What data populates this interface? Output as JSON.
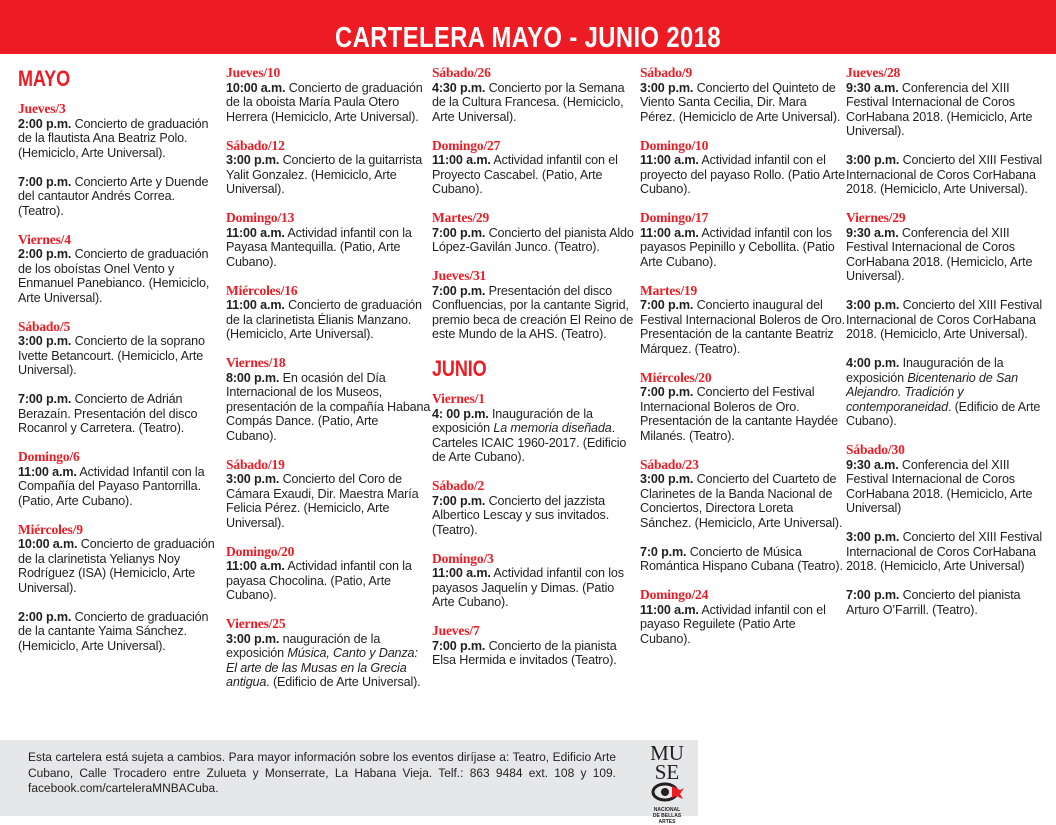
{
  "title": "CARTELERA  MAYO - JUNIO 2018",
  "colors": {
    "accent": "#ed1c24",
    "footer_bg": "#e6e7e8"
  },
  "columns": [
    [
      {
        "month": "MAYO"
      },
      {
        "day": "Jueves/3",
        "events": [
          {
            "time": "2:00 p.m.",
            "text": [
              {
                "t": " Concierto de graduación de la flautista Ana Beatriz Polo. (Hemiciclo, Arte Universal)."
              }
            ]
          },
          {
            "time": "7:00 p.m.",
            "text": [
              {
                "t": "  Concierto Arte y Duende del cantautor Andrés Correa. (Teatro)."
              }
            ]
          }
        ]
      },
      {
        "day": "Viernes/4",
        "events": [
          {
            "time": "2:00 p.m.",
            "text": [
              {
                "t": " Concierto de graduación de los oboístas Onel Vento y Enmanuel Panebianco. (Hemiciclo, Arte Universal)."
              }
            ]
          }
        ]
      },
      {
        "day": "Sábado/5",
        "events": [
          {
            "time": "3:00 p.m.",
            "text": [
              {
                "t": " Concierto de la soprano Ivette Betancourt. (Hemiciclo, Arte Universal)."
              }
            ]
          },
          {
            "time": "7:00 p.m.",
            "text": [
              {
                "t": " Concierto de Adrián Berazaín. Presentación del disco Rocanrol y Carretera. (Teatro)."
              }
            ]
          }
        ]
      },
      {
        "day": "Domingo/6",
        "events": [
          {
            "time": "11:00 a.m.",
            "text": [
              {
                "t": " Actividad Infantil con la Compañía del Payaso Pantorrilla. (Patio, Arte Cubano)."
              }
            ]
          }
        ]
      },
      {
        "day": "Miércoles/9",
        "events": [
          {
            "time": "10:00 a.m.",
            "text": [
              {
                "t": " Concierto de graduación de la clarinetista Yelianys Noy Rodríguez (ISA) (Hemiciclo, Arte Universal)."
              }
            ]
          },
          {
            "time": "2:00 p.m.",
            "text": [
              {
                "t": " Concierto de graduación de la cantante Yaima Sánchez. (Hemiciclo, Arte Universal)."
              }
            ]
          }
        ]
      }
    ],
    [
      {
        "day": "Jueves/10",
        "events": [
          {
            "time": "10:00 a.m.",
            "text": [
              {
                "t": " Concierto de graduación de la oboista María Paula Otero Herrera (Hemiciclo, Arte Universal)."
              }
            ]
          }
        ]
      },
      {
        "day": "Sábado/12",
        "events": [
          {
            "time": "3:00 p.m.",
            "text": [
              {
                "t": " Concierto de la guitarrista Yalit Gonzalez. (Hemiciclo, Arte Universal)."
              }
            ]
          }
        ]
      },
      {
        "day": "Domingo/13",
        "events": [
          {
            "time": "11:00 a.m.",
            "text": [
              {
                "t": " Actividad infantil con la Payasa Mantequilla. (Patio, Arte Cubano)."
              }
            ]
          }
        ]
      },
      {
        "day": "Miércoles/16",
        "events": [
          {
            "time": "11:00 a.m.",
            "text": [
              {
                "t": " Concierto de graduación de la clarinetista Élianis Manzano. (Hemiciclo, Arte Universal)."
              }
            ]
          }
        ]
      },
      {
        "day": "Viernes/18",
        "events": [
          {
            "time": "8:00 p.m.",
            "text": [
              {
                "t": " En ocasión del Día Internacional de los Museos, presentación de la compañía Habana Compás Dance. (Patio, Arte Cubano)."
              }
            ]
          }
        ]
      },
      {
        "day": "Sábado/19",
        "events": [
          {
            "time": "3:00 p.m.",
            "text": [
              {
                "t": " Concierto del Coro de Cámara Exaudi, Dir. Maestra María Felicia Pérez. (Hemiciclo, Arte Universal)."
              }
            ]
          }
        ]
      },
      {
        "day": "Domingo/20",
        "events": [
          {
            "time": "11:00 a.m.",
            "text": [
              {
                "t": " Actividad infantil con la payasa Chocolina. (Patio, Arte Cubano)."
              }
            ]
          }
        ]
      },
      {
        "day": "Viernes/25",
        "events": [
          {
            "time": "3:00 p.m.",
            "text": [
              {
                "t": " nauguración de la exposición "
              },
              {
                "t": "Música, Canto  y Danza: El  arte  de las Musas en la Grecia antigua",
                "i": true
              },
              {
                "t": ".   (Edificio de Arte Universal)."
              }
            ]
          }
        ]
      }
    ],
    [
      {
        "day": "Sábado/26",
        "events": [
          {
            "time": "4:30 p.m.",
            "text": [
              {
                "t": " Concierto por la Semana de la Cultura Francesa. (Hemiciclo, Arte Universal)."
              }
            ]
          }
        ]
      },
      {
        "day": "Domingo/27",
        "events": [
          {
            "time": "11:00 a.m.",
            "text": [
              {
                "t": " Actividad infantil con el Proyecto Cascabel. (Patio, Arte Cubano)."
              }
            ]
          }
        ]
      },
      {
        "day": "Martes/29",
        "events": [
          {
            "time": "7:00 p.m.",
            "text": [
              {
                "t": "  Concierto del pianista Aldo López-Gavilán Junco. (Teatro)."
              }
            ]
          }
        ]
      },
      {
        "day": "Jueves/31",
        "events": [
          {
            "time": "7:00 p.m.",
            "text": [
              {
                "t": " Presentación del disco Confluencias, por la cantante Sigrid, premio beca de creación El Reino de este Mundo de la AHS. (Teatro)."
              }
            ]
          }
        ]
      },
      {
        "month": "JUNIO"
      },
      {
        "day": "Viernes/1",
        "events": [
          {
            "time": "4: 00 p.m.",
            "text": [
              {
                "t": " Inauguración de la exposición "
              },
              {
                "t": "La memoria diseñada",
                "i": true
              },
              {
                "t": ". Carteles ICAIC 1960-2017. (Edificio de Arte Cubano)."
              }
            ]
          }
        ]
      },
      {
        "day": "Sábado/2",
        "events": [
          {
            "time": "7:00 p.m.",
            "text": [
              {
                "t": " Concierto del jazzista Albertico Lescay y sus invitados. (Teatro)."
              }
            ]
          }
        ]
      },
      {
        "day": "Domingo/3",
        "events": [
          {
            "time": "11:00 a.m.",
            "text": [
              {
                "t": " Actividad infantil con los payasos Jaquelín y Dimas. (Patio Arte Cubano)."
              }
            ]
          }
        ]
      },
      {
        "day": "Jueves/7",
        "events": [
          {
            "time": "7:00 p.m.",
            "text": [
              {
                "t": " Concierto de la pianista Elsa Hermida e invitados (Teatro)."
              }
            ]
          }
        ]
      }
    ],
    [
      {
        "day": "Sábado/9",
        "events": [
          {
            "time": "3:00 p.m.",
            "text": [
              {
                "t": " Concierto del Quinteto de Viento Santa Cecilia, Dir. Mara Pérez. (Hemiciclo de Arte Universal)."
              }
            ]
          }
        ]
      },
      {
        "day": "Domingo/10",
        "events": [
          {
            "time": "11:00 a.m.",
            "text": [
              {
                "t": " Actividad infantil con el proyecto del payaso Rollo. (Patio Arte Cubano)."
              }
            ]
          }
        ]
      },
      {
        "day": "Domingo/17",
        "events": [
          {
            "time": "11:00 a.m.",
            "text": [
              {
                "t": " Actividad infantil con los payasos Pepinillo y Cebollita. (Patio Arte Cubano)."
              }
            ]
          }
        ]
      },
      {
        "day": "Martes/19",
        "events": [
          {
            "time": "7:00 p.m.",
            "text": [
              {
                "t": " Concierto inaugural del Festival Internacional Boleros de Oro. Presentación de la cantante Beatriz Márquez. (Teatro)."
              }
            ]
          }
        ]
      },
      {
        "day": "Miércoles/20",
        "events": [
          {
            "time": "7:00 p.m.",
            "text": [
              {
                "t": " Concierto del Festival Internacional Boleros de Oro. Presentación de la cantante Haydée Milanés. (Teatro)."
              }
            ]
          }
        ]
      },
      {
        "day": "Sábado/23",
        "events": [
          {
            "time": "3:00 p.m.",
            "text": [
              {
                "t": " Concierto del Cuarteto de Clarinetes de la Banda Nacional de Conciertos, Directora Loreta Sánchez. (Hemiciclo, Arte Universal)."
              }
            ]
          },
          {
            "time": "7:0 p.m.",
            "text": [
              {
                "t": " Concierto de Música Romántica Hispano Cubana (Teatro)."
              }
            ]
          }
        ]
      },
      {
        "day": "Domingo/24",
        "events": [
          {
            "time": "11:00 a.m.",
            "text": [
              {
                "t": " Actividad infantil con el payaso Reguilete (Patio Arte Cubano)."
              }
            ]
          }
        ]
      }
    ],
    [
      {
        "day": "Jueves/28",
        "events": [
          {
            "time": "9:30 a.m.",
            "text": [
              {
                "t": " Conferencia del XIII Festival Internacional de Coros CorHabana 2018. (Hemiciclo, Arte Universal)."
              }
            ]
          },
          {
            "time": "3:00 p.m.",
            "text": [
              {
                "t": " Concierto del XIII Festival Internacional de Coros CorHabana 2018. (Hemiciclo, Arte Universal)."
              }
            ]
          }
        ]
      },
      {
        "day": "Viernes/29",
        "events": [
          {
            "time": "9:30 a.m.",
            "text": [
              {
                "t": " Conferencia del XIII Festival Internacional de Coros CorHabana 2018. (Hemiciclo, Arte Universal)."
              }
            ]
          },
          {
            "time": "3:00 p.m.",
            "text": [
              {
                "t": " Concierto del XIII Festival Internacional de Coros CorHabana 2018. (Hemiciclo, Arte Universal)."
              }
            ]
          },
          {
            "time": "4:00 p.m.",
            "text": [
              {
                "t": " Inauguración de la exposición "
              },
              {
                "t": "Bicentenario de San Alejandro. Tradición y contemporaneidad",
                "i": true
              },
              {
                "t": ". (Edificio de Arte Cubano)."
              }
            ]
          }
        ]
      },
      {
        "day": "Sábado/30",
        "events": [
          {
            "time": "9:30 a.m.",
            "text": [
              {
                "t": " Conferencia del XIII Festival Internacional de Coros CorHabana 2018. (Hemiciclo, Arte Universal)"
              }
            ]
          },
          {
            "time": "3:00 p.m.",
            "text": [
              {
                "t": " Concierto del XIII Festival Internacional de Coros CorHabana 2018. (Hemiciclo, Arte Universal)"
              }
            ]
          },
          {
            "time": "7:00 p.m.",
            "text": [
              {
                "t": " Concierto del pianista Arturo O’Farrill. (Teatro)."
              }
            ]
          }
        ]
      }
    ]
  ],
  "footer": {
    "note": "Esta cartelera está sujeta a cambios. Para mayor información sobre los eventos diríjase a: Teatro, Edificio Arte Cubano, Calle Trocadero entre Zulueta y Monserrate, La Habana Vieja. Telf.: 863 9484  ext. 108 y 109. facebook.com/carteleraMNBACuba.",
    "logo": {
      "line1": "MU",
      "line2": "SE",
      "line3": "NACIONAL",
      "line4": "DE BELLAS",
      "line5": "ARTES"
    }
  }
}
